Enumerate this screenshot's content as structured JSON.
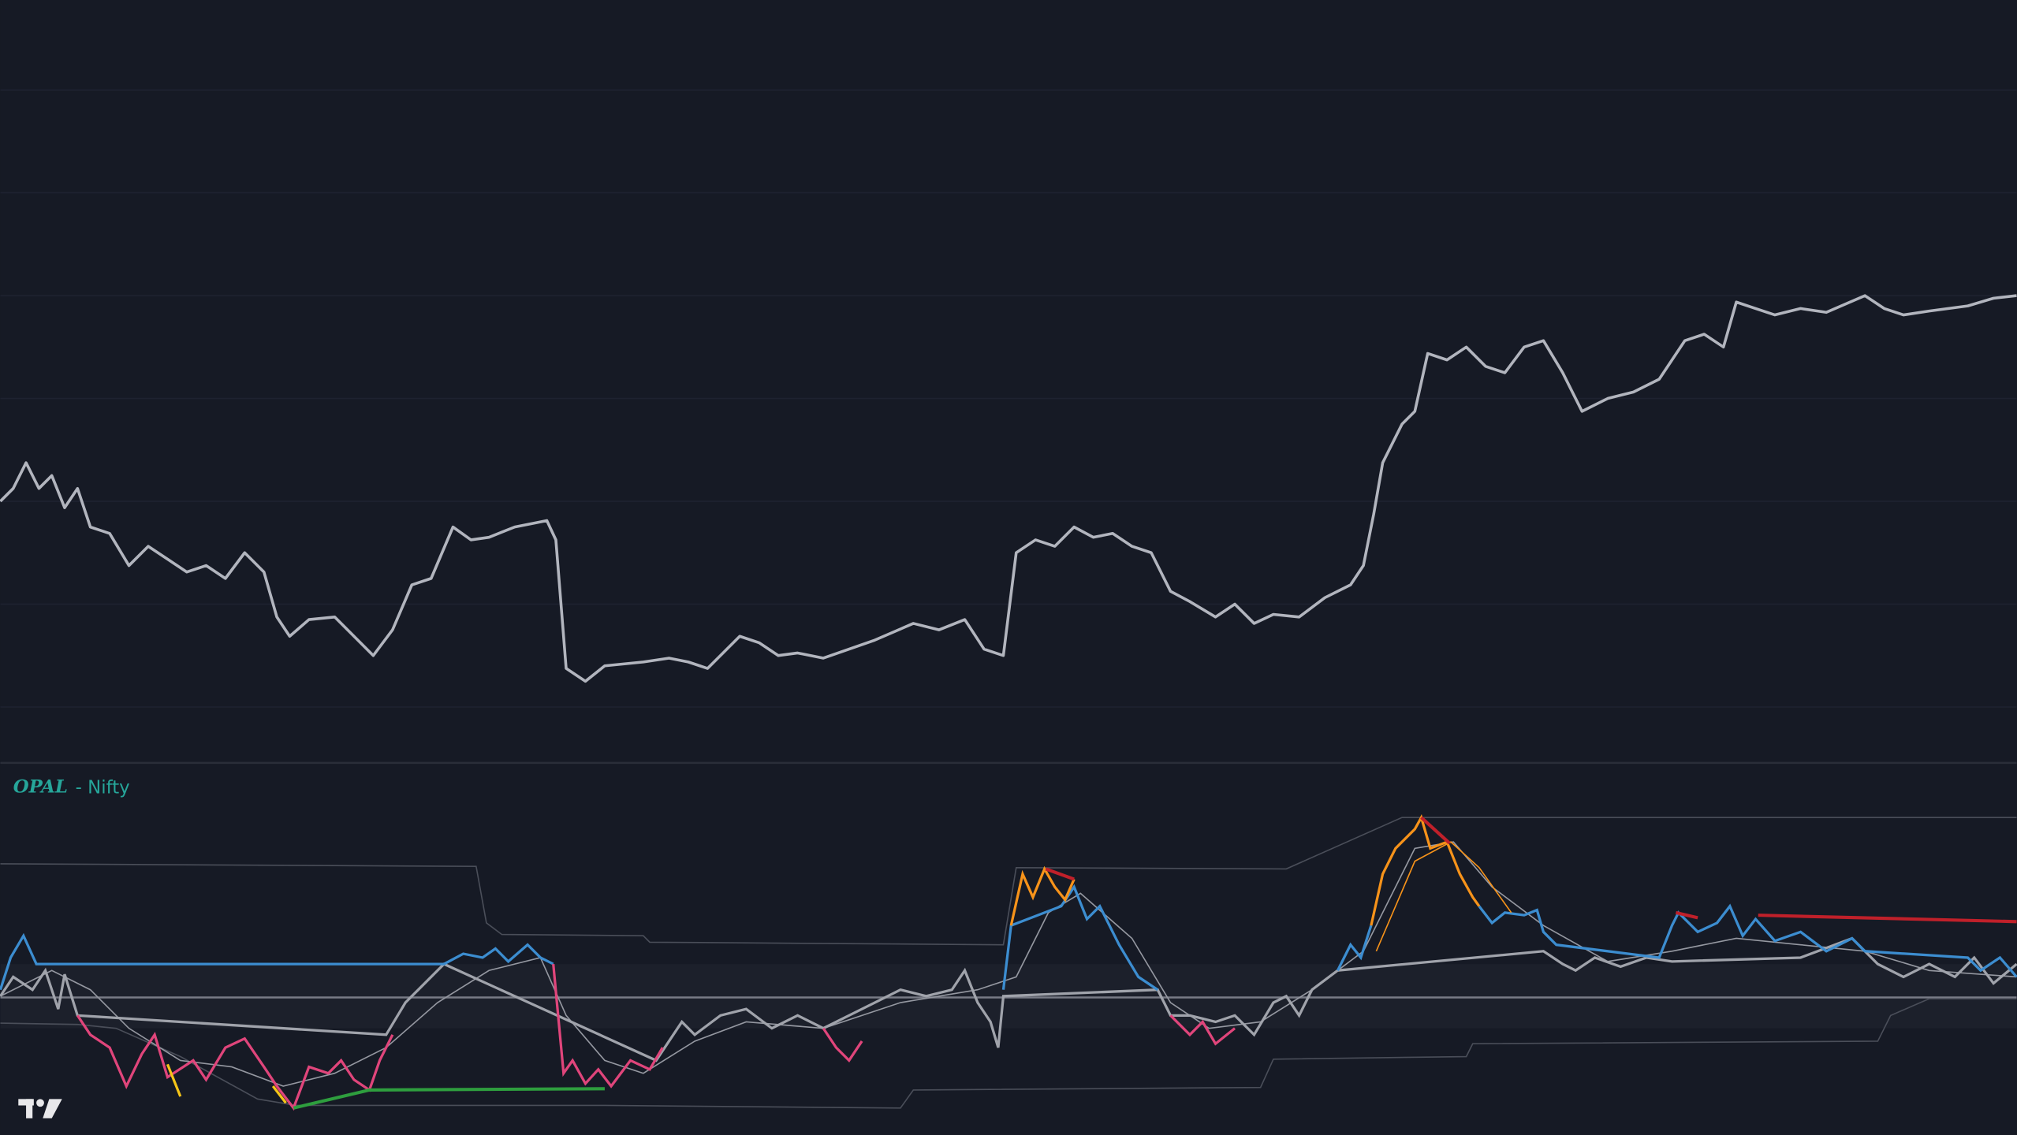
{
  "indicator": {
    "name": "OPAL",
    "label": "- Nifty"
  }
}
